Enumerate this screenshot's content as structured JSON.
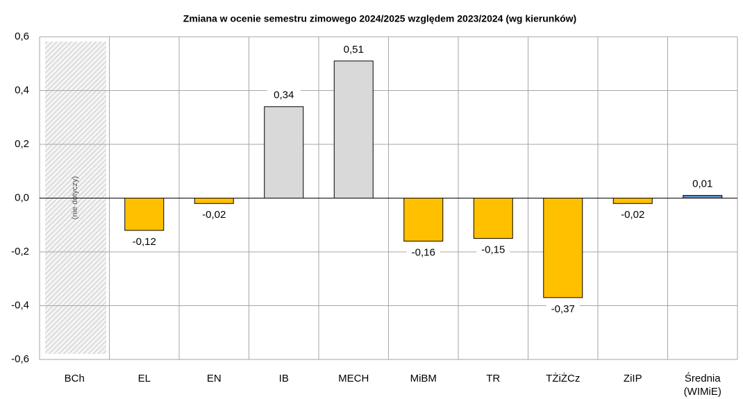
{
  "chart_data": {
    "type": "bar",
    "title": "Zmiana w ocenie semestru zimowego 2024/2025 względem 2023/2024 (wg kierunków)",
    "categories": [
      "BCh",
      "EL",
      "EN",
      "IB",
      "MECH",
      "MiBM",
      "TR",
      "TŻiŻCz",
      "ZiIP",
      "Średnia (WIMiE)"
    ],
    "values": [
      null,
      -0.12,
      -0.02,
      0.34,
      0.51,
      -0.16,
      -0.15,
      -0.37,
      -0.02,
      0.01
    ],
    "value_labels": [
      null,
      "-0,12",
      "-0,02",
      "0,34",
      "0,51",
      "-0,16",
      "-0,15",
      "-0,37",
      "-0,02",
      "0,01"
    ],
    "colors": [
      null,
      "#ffc000",
      "#ffc000",
      "#d9d9d9",
      "#d9d9d9",
      "#ffc000",
      "#ffc000",
      "#ffc000",
      "#ffc000",
      "#5b8fd0"
    ],
    "annotation": "(nie dotyczy)",
    "ylim": [
      -0.6,
      0.6
    ],
    "yticks": [
      {
        "value": -0.6,
        "label": "-0,6"
      },
      {
        "value": -0.4,
        "label": "-0,4"
      },
      {
        "value": -0.2,
        "label": "-0,2"
      },
      {
        "value": 0,
        "label": "0,0"
      },
      {
        "value": 0.2,
        "label": "0,2"
      },
      {
        "value": 0.4,
        "label": "0,4"
      },
      {
        "value": 0.6,
        "label": "0,6"
      }
    ],
    "grid": true
  }
}
